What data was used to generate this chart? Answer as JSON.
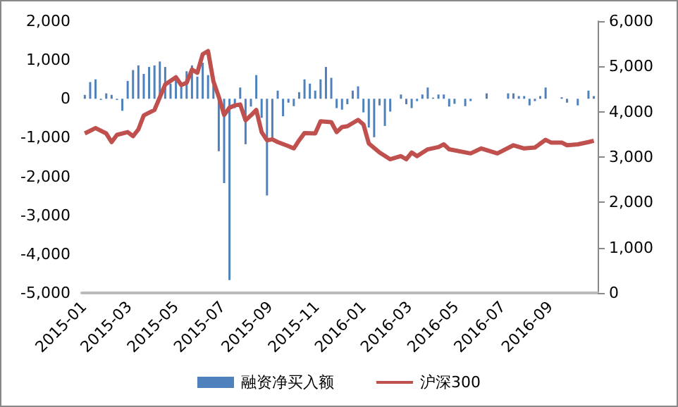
{
  "chart_data": {
    "type": "bar",
    "x": [
      "2015-01-02",
      "2015-01-09",
      "2015-01-16",
      "2015-01-23",
      "2015-01-30",
      "2015-02-06",
      "2015-02-13",
      "2015-02-20",
      "2015-02-27",
      "2015-03-06",
      "2015-03-13",
      "2015-03-20",
      "2015-03-27",
      "2015-04-03",
      "2015-04-10",
      "2015-04-17",
      "2015-04-24",
      "2015-05-01",
      "2015-05-08",
      "2015-05-15",
      "2015-05-22",
      "2015-05-29",
      "2015-06-05",
      "2015-06-12",
      "2015-06-19",
      "2015-06-26",
      "2015-07-03",
      "2015-07-10",
      "2015-07-17",
      "2015-07-24",
      "2015-07-31",
      "2015-08-07",
      "2015-08-14",
      "2015-08-21",
      "2015-08-28",
      "2015-09-04",
      "2015-09-11",
      "2015-09-18",
      "2015-09-25",
      "2015-10-02",
      "2015-10-09",
      "2015-10-16",
      "2015-10-23",
      "2015-10-30",
      "2015-11-06",
      "2015-11-13",
      "2015-11-20",
      "2015-11-27",
      "2015-12-04",
      "2015-12-11",
      "2015-12-18",
      "2015-12-25",
      "2016-01-01",
      "2016-01-08",
      "2016-01-15",
      "2016-01-22",
      "2016-01-29",
      "2016-02-05",
      "2016-02-12",
      "2016-02-19",
      "2016-02-26",
      "2016-03-04",
      "2016-03-11",
      "2016-03-18",
      "2016-03-25",
      "2016-04-01",
      "2016-04-08",
      "2016-04-15",
      "2016-04-22",
      "2016-04-29",
      "2016-05-06",
      "2016-05-13",
      "2016-05-20",
      "2016-05-27",
      "2016-06-03",
      "2016-06-10",
      "2016-06-17",
      "2016-06-24",
      "2016-07-01",
      "2016-07-08",
      "2016-07-15",
      "2016-07-22",
      "2016-07-29",
      "2016-08-05",
      "2016-08-12",
      "2016-08-19",
      "2016-08-26",
      "2016-09-02",
      "2016-09-09",
      "2016-09-16",
      "2016-09-23",
      "2016-09-30",
      "2016-10-07",
      "2016-10-14",
      "2016-10-21",
      "2016-10-28"
    ],
    "series": [
      {
        "name": "融资净买入额",
        "color": "#4f81bd",
        "values": [
          100,
          430,
          500,
          -30,
          140,
          100,
          -30,
          -310,
          460,
          740,
          860,
          640,
          820,
          860,
          960,
          820,
          390,
          540,
          390,
          710,
          860,
          570,
          930,
          610,
          360,
          -1350,
          -2170,
          -4670,
          -240,
          290,
          -1170,
          -200,
          610,
          -490,
          -2490,
          -1020,
          210,
          -450,
          -100,
          -190,
          170,
          500,
          390,
          210,
          500,
          820,
          540,
          -240,
          -280,
          -140,
          210,
          320,
          -350,
          -740,
          -990,
          -170,
          -700,
          -330,
          0,
          110,
          -140,
          -240,
          -60,
          110,
          290,
          30,
          110,
          110,
          -200,
          -130,
          0,
          -190,
          -60,
          0,
          0,
          140,
          0,
          0,
          0,
          140,
          140,
          70,
          70,
          -170,
          -60,
          70,
          290,
          0,
          0,
          40,
          -100,
          0,
          -170,
          0,
          210,
          70
        ]
      },
      {
        "name": "沪深300",
        "type": "line",
        "axis": "y2",
        "color": "#c0504d",
        "x": [
          "2015-01-02",
          "2015-01-16",
          "2015-01-30",
          "2015-02-06",
          "2015-02-13",
          "2015-02-27",
          "2015-03-06",
          "2015-03-13",
          "2015-03-20",
          "2015-04-03",
          "2015-04-10",
          "2015-04-17",
          "2015-05-01",
          "2015-05-08",
          "2015-05-15",
          "2015-05-22",
          "2015-05-29",
          "2015-06-05",
          "2015-06-12",
          "2015-06-19",
          "2015-06-26",
          "2015-07-03",
          "2015-07-10",
          "2015-07-17",
          "2015-07-24",
          "2015-07-31",
          "2015-08-07",
          "2015-08-14",
          "2015-08-21",
          "2015-08-28",
          "2015-09-04",
          "2015-09-11",
          "2015-09-25",
          "2015-10-02",
          "2015-10-09",
          "2015-10-16",
          "2015-10-30",
          "2015-11-06",
          "2015-11-20",
          "2015-11-27",
          "2015-12-04",
          "2015-12-11",
          "2015-12-25",
          "2016-01-01",
          "2016-01-08",
          "2016-01-22",
          "2016-02-05",
          "2016-02-19",
          "2016-02-26",
          "2016-03-04",
          "2016-03-11",
          "2016-03-25",
          "2016-04-08",
          "2016-04-15",
          "2016-04-22",
          "2016-05-20",
          "2016-06-03",
          "2016-06-24",
          "2016-07-15",
          "2016-07-29",
          "2016-08-12",
          "2016-08-26",
          "2016-09-02",
          "2016-09-16",
          "2016-09-23",
          "2016-10-07",
          "2016-10-21",
          "2016-10-28"
        ],
        "values": [
          3520,
          3640,
          3520,
          3330,
          3490,
          3550,
          3460,
          3610,
          3920,
          4040,
          4320,
          4600,
          4760,
          4590,
          4640,
          4930,
          4860,
          5270,
          5340,
          4670,
          4330,
          3930,
          4090,
          4140,
          4160,
          3810,
          3920,
          4040,
          3550,
          3370,
          3390,
          3330,
          3240,
          3190,
          3370,
          3530,
          3520,
          3790,
          3770,
          3550,
          3660,
          3680,
          3820,
          3720,
          3300,
          3100,
          2950,
          3020,
          2950,
          3100,
          3020,
          3170,
          3220,
          3280,
          3170,
          3080,
          3190,
          3080,
          3260,
          3190,
          3210,
          3380,
          3320,
          3320,
          3260,
          3280,
          3330,
          3360
        ]
      }
    ],
    "xlim": [
      "2014-12-29",
      "2016-11-02"
    ],
    "xticks": [
      "2015-01",
      "2015-03",
      "2015-05",
      "2015-07",
      "2015-09",
      "2015-11",
      "2016-01",
      "2016-03",
      "2016-05",
      "2016-07",
      "2016-09"
    ],
    "ylim": [
      -5000,
      2000
    ],
    "yticks": [
      {
        "value": -5000,
        "label": "-5,000"
      },
      {
        "value": -4000,
        "label": "-4,000"
      },
      {
        "value": -3000,
        "label": "-3,000"
      },
      {
        "value": -2000,
        "label": "-2,000"
      },
      {
        "value": -1000,
        "label": "-1,000"
      },
      0,
      {
        "value": 1000,
        "label": "1,000"
      },
      {
        "value": 2000,
        "label": "2,000"
      }
    ],
    "y2lim": [
      0,
      6000
    ],
    "y2ticks": [
      0,
      {
        "value": 1000,
        "label": "1,000"
      },
      {
        "value": 2000,
        "label": "2,000"
      },
      {
        "value": 3000,
        "label": "3,000"
      },
      {
        "value": 4000,
        "label": "4,000"
      },
      {
        "value": 5000,
        "label": "5,000"
      },
      {
        "value": 6000,
        "label": "6,000"
      }
    ],
    "grid": false,
    "legend": "bottom",
    "marker": "none"
  }
}
